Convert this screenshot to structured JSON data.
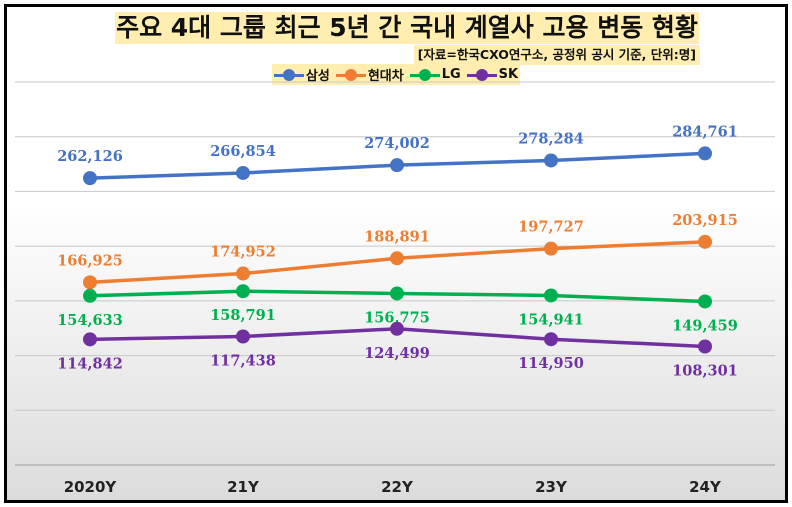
{
  "chart_data": {
    "type": "line",
    "title": "주요 4대 그룹 최근 5년 간 국내 계열사 고용 변동 현황",
    "subtitle": "[자료=한국CXO연구소, 공정위 공시 기준, 단위:명]",
    "categories": [
      "2020Y",
      "21Y",
      "22Y",
      "23Y",
      "24Y"
    ],
    "series": [
      {
        "name": "삼성",
        "color": "#4472c4",
        "values": [
          262126,
          266854,
          274002,
          278284,
          284761
        ],
        "labels": [
          "262,126",
          "266,854",
          "274,002",
          "278,284",
          "284,761"
        ],
        "label_position": "above"
      },
      {
        "name": "현대차",
        "color": "#ed7d31",
        "values": [
          166925,
          174952,
          188891,
          197727,
          203915
        ],
        "labels": [
          "166,925",
          "174,952",
          "188,891",
          "197,727",
          "203,915"
        ],
        "label_position": "above"
      },
      {
        "name": "LG",
        "color": "#00b050",
        "values": [
          154633,
          158791,
          156775,
          154941,
          149459
        ],
        "labels": [
          "154,633",
          "158,791",
          "156,775",
          "154,941",
          "149,459"
        ],
        "label_position": "below"
      },
      {
        "name": "SK",
        "color": "#7030a0",
        "values": [
          114842,
          117438,
          124499,
          114950,
          108301
        ],
        "labels": [
          "114,842",
          "117,438",
          "124,499",
          "114,950",
          "108,301"
        ],
        "label_position": "below"
      }
    ],
    "ylim": [
      0,
      350000
    ],
    "y_tick_step": 50000,
    "y_axis_labels_shown": false,
    "grid": true,
    "legend_position": "top-center"
  }
}
